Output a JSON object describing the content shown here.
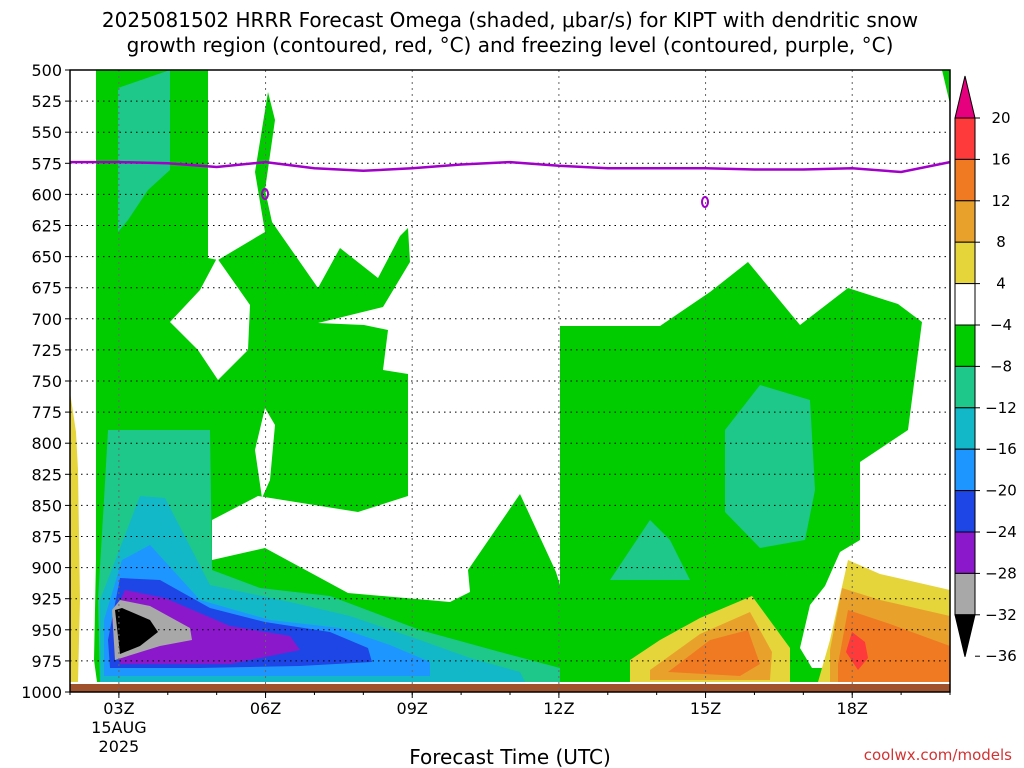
{
  "chart_data": {
    "type": "heatmap",
    "title_lines": [
      "2025081502 HRRR Forecast Omega (shaded, μbar/s) for KIPT with dendritic snow",
      "growth region (contoured, red, °C) and freezing level (contoured, purple, °C)"
    ],
    "xlabel": "Forecast Time (UTC)",
    "ylabel": "",
    "x_range_hours": [
      2,
      20
    ],
    "x_ticks": [
      {
        "hour": 3,
        "label": "03Z",
        "sublabels": [
          "15AUG",
          "2025"
        ]
      },
      {
        "hour": 6,
        "label": "06Z",
        "sublabels": []
      },
      {
        "hour": 9,
        "label": "09Z",
        "sublabels": []
      },
      {
        "hour": 12,
        "label": "12Z",
        "sublabels": []
      },
      {
        "hour": 15,
        "label": "15Z",
        "sublabels": []
      },
      {
        "hour": 18,
        "label": "18Z",
        "sublabels": []
      }
    ],
    "y_range_mb": [
      500,
      1000
    ],
    "y_scale": "pressure, inverted",
    "y_ticks": [
      500,
      525,
      550,
      575,
      600,
      625,
      650,
      675,
      700,
      725,
      750,
      775,
      800,
      825,
      850,
      875,
      900,
      925,
      950,
      975,
      1000
    ],
    "grid": true,
    "colorbar": {
      "labels": [
        "20",
        "16",
        "12",
        "8",
        "4",
        "−4",
        "−8",
        "−12",
        "−16",
        "−20",
        "−24",
        "−28",
        "−32",
        "−36"
      ],
      "colors": [
        "#e6007e",
        "#ff3a3a",
        "#f07a22",
        "#e8a22c",
        "#e6d53a",
        "#ffffff",
        "#00cc00",
        "#1ec88a",
        "#12b8c8",
        "#1e96ff",
        "#1e46e6",
        "#8c18cc",
        "#a8a8a8",
        "#000000"
      ]
    },
    "freezing_level_mb": {
      "hours": [
        2,
        3,
        4,
        5,
        6,
        7,
        8,
        9,
        10,
        11,
        12,
        13,
        14,
        15,
        16,
        17,
        18,
        19,
        20
      ],
      "values": [
        574,
        574,
        575,
        578,
        574,
        579,
        581,
        579,
        576,
        574,
        577,
        579,
        579,
        579,
        580,
        580,
        579,
        582,
        574
      ]
    },
    "credit": "coolwx.com/models"
  }
}
